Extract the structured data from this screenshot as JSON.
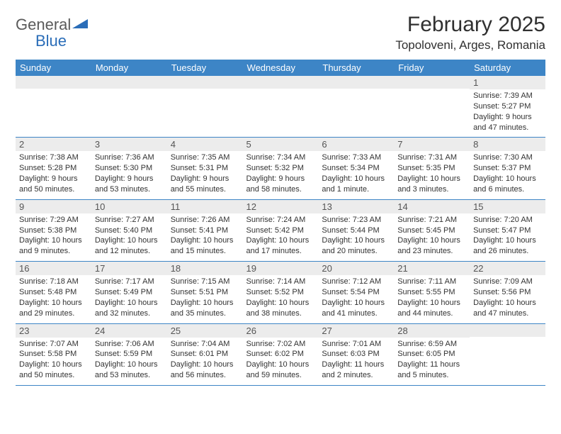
{
  "brand": {
    "word1": "General",
    "word2": "Blue",
    "logo_text_color": "#5a5a5a",
    "logo_blue_color": "#2a6db8"
  },
  "header": {
    "month_title": "February 2025",
    "location": "Topoloveni, Arges, Romania"
  },
  "colors": {
    "header_row_bg": "#3d85c6",
    "header_row_fg": "#ffffff",
    "daynum_bg": "#ececec",
    "row_border": "#3d85c6",
    "page_bg": "#ffffff"
  },
  "weekdays": [
    "Sunday",
    "Monday",
    "Tuesday",
    "Wednesday",
    "Thursday",
    "Friday",
    "Saturday"
  ],
  "weeks": [
    [
      {
        "n": "",
        "sr": "",
        "ss": "",
        "dl": ""
      },
      {
        "n": "",
        "sr": "",
        "ss": "",
        "dl": ""
      },
      {
        "n": "",
        "sr": "",
        "ss": "",
        "dl": ""
      },
      {
        "n": "",
        "sr": "",
        "ss": "",
        "dl": ""
      },
      {
        "n": "",
        "sr": "",
        "ss": "",
        "dl": ""
      },
      {
        "n": "",
        "sr": "",
        "ss": "",
        "dl": ""
      },
      {
        "n": "1",
        "sr": "Sunrise: 7:39 AM",
        "ss": "Sunset: 5:27 PM",
        "dl": "Daylight: 9 hours and 47 minutes."
      }
    ],
    [
      {
        "n": "2",
        "sr": "Sunrise: 7:38 AM",
        "ss": "Sunset: 5:28 PM",
        "dl": "Daylight: 9 hours and 50 minutes."
      },
      {
        "n": "3",
        "sr": "Sunrise: 7:36 AM",
        "ss": "Sunset: 5:30 PM",
        "dl": "Daylight: 9 hours and 53 minutes."
      },
      {
        "n": "4",
        "sr": "Sunrise: 7:35 AM",
        "ss": "Sunset: 5:31 PM",
        "dl": "Daylight: 9 hours and 55 minutes."
      },
      {
        "n": "5",
        "sr": "Sunrise: 7:34 AM",
        "ss": "Sunset: 5:32 PM",
        "dl": "Daylight: 9 hours and 58 minutes."
      },
      {
        "n": "6",
        "sr": "Sunrise: 7:33 AM",
        "ss": "Sunset: 5:34 PM",
        "dl": "Daylight: 10 hours and 1 minute."
      },
      {
        "n": "7",
        "sr": "Sunrise: 7:31 AM",
        "ss": "Sunset: 5:35 PM",
        "dl": "Daylight: 10 hours and 3 minutes."
      },
      {
        "n": "8",
        "sr": "Sunrise: 7:30 AM",
        "ss": "Sunset: 5:37 PM",
        "dl": "Daylight: 10 hours and 6 minutes."
      }
    ],
    [
      {
        "n": "9",
        "sr": "Sunrise: 7:29 AM",
        "ss": "Sunset: 5:38 PM",
        "dl": "Daylight: 10 hours and 9 minutes."
      },
      {
        "n": "10",
        "sr": "Sunrise: 7:27 AM",
        "ss": "Sunset: 5:40 PM",
        "dl": "Daylight: 10 hours and 12 minutes."
      },
      {
        "n": "11",
        "sr": "Sunrise: 7:26 AM",
        "ss": "Sunset: 5:41 PM",
        "dl": "Daylight: 10 hours and 15 minutes."
      },
      {
        "n": "12",
        "sr": "Sunrise: 7:24 AM",
        "ss": "Sunset: 5:42 PM",
        "dl": "Daylight: 10 hours and 17 minutes."
      },
      {
        "n": "13",
        "sr": "Sunrise: 7:23 AM",
        "ss": "Sunset: 5:44 PM",
        "dl": "Daylight: 10 hours and 20 minutes."
      },
      {
        "n": "14",
        "sr": "Sunrise: 7:21 AM",
        "ss": "Sunset: 5:45 PM",
        "dl": "Daylight: 10 hours and 23 minutes."
      },
      {
        "n": "15",
        "sr": "Sunrise: 7:20 AM",
        "ss": "Sunset: 5:47 PM",
        "dl": "Daylight: 10 hours and 26 minutes."
      }
    ],
    [
      {
        "n": "16",
        "sr": "Sunrise: 7:18 AM",
        "ss": "Sunset: 5:48 PM",
        "dl": "Daylight: 10 hours and 29 minutes."
      },
      {
        "n": "17",
        "sr": "Sunrise: 7:17 AM",
        "ss": "Sunset: 5:49 PM",
        "dl": "Daylight: 10 hours and 32 minutes."
      },
      {
        "n": "18",
        "sr": "Sunrise: 7:15 AM",
        "ss": "Sunset: 5:51 PM",
        "dl": "Daylight: 10 hours and 35 minutes."
      },
      {
        "n": "19",
        "sr": "Sunrise: 7:14 AM",
        "ss": "Sunset: 5:52 PM",
        "dl": "Daylight: 10 hours and 38 minutes."
      },
      {
        "n": "20",
        "sr": "Sunrise: 7:12 AM",
        "ss": "Sunset: 5:54 PM",
        "dl": "Daylight: 10 hours and 41 minutes."
      },
      {
        "n": "21",
        "sr": "Sunrise: 7:11 AM",
        "ss": "Sunset: 5:55 PM",
        "dl": "Daylight: 10 hours and 44 minutes."
      },
      {
        "n": "22",
        "sr": "Sunrise: 7:09 AM",
        "ss": "Sunset: 5:56 PM",
        "dl": "Daylight: 10 hours and 47 minutes."
      }
    ],
    [
      {
        "n": "23",
        "sr": "Sunrise: 7:07 AM",
        "ss": "Sunset: 5:58 PM",
        "dl": "Daylight: 10 hours and 50 minutes."
      },
      {
        "n": "24",
        "sr": "Sunrise: 7:06 AM",
        "ss": "Sunset: 5:59 PM",
        "dl": "Daylight: 10 hours and 53 minutes."
      },
      {
        "n": "25",
        "sr": "Sunrise: 7:04 AM",
        "ss": "Sunset: 6:01 PM",
        "dl": "Daylight: 10 hours and 56 minutes."
      },
      {
        "n": "26",
        "sr": "Sunrise: 7:02 AM",
        "ss": "Sunset: 6:02 PM",
        "dl": "Daylight: 10 hours and 59 minutes."
      },
      {
        "n": "27",
        "sr": "Sunrise: 7:01 AM",
        "ss": "Sunset: 6:03 PM",
        "dl": "Daylight: 11 hours and 2 minutes."
      },
      {
        "n": "28",
        "sr": "Sunrise: 6:59 AM",
        "ss": "Sunset: 6:05 PM",
        "dl": "Daylight: 11 hours and 5 minutes."
      },
      {
        "n": "",
        "sr": "",
        "ss": "",
        "dl": ""
      }
    ]
  ]
}
